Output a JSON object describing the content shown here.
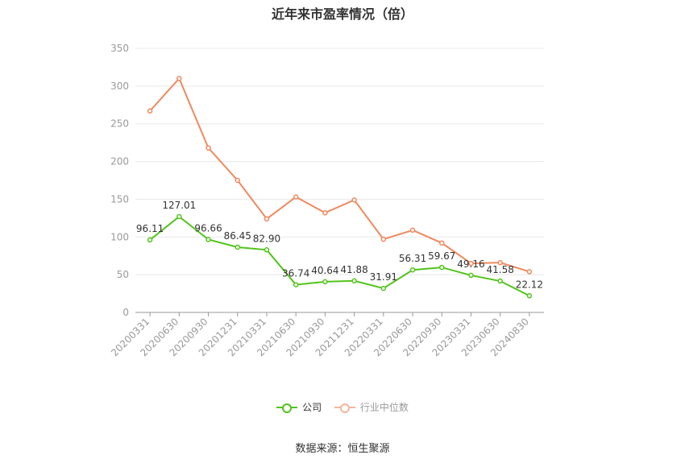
{
  "chart_data": {
    "type": "line",
    "title": "近年来市盈率情况（倍）",
    "categories": [
      "20200331",
      "20200630",
      "20200930",
      "20201231",
      "20210331",
      "20210630",
      "20210930",
      "20211231",
      "20220331",
      "20220630",
      "20220930",
      "20230331",
      "20230630",
      "20240830"
    ],
    "series": [
      {
        "name": "公司",
        "color": "#52c41a",
        "values": [
          96.11,
          127.01,
          96.66,
          86.45,
          82.9,
          36.74,
          40.64,
          41.88,
          31.91,
          56.31,
          59.67,
          49.16,
          41.58,
          22.12
        ],
        "labels": [
          "96.11",
          "127.01",
          "96.66",
          "86.45",
          "82.90",
          "36.74",
          "40.64",
          "41.88",
          "31.91",
          "56.31",
          "59.67",
          "49.16",
          "41.58",
          "22.12"
        ]
      },
      {
        "name": "行业中位数",
        "color": "#f0895f",
        "values": [
          267,
          310,
          218,
          175,
          124,
          153,
          132,
          149,
          97,
          109,
          92,
          65,
          66,
          54
        ]
      }
    ],
    "ylim": [
      0,
      350
    ],
    "yticks": [
      0,
      50,
      100,
      150,
      200,
      250,
      300,
      350
    ],
    "grid": true,
    "legend_position": "bottom"
  },
  "footer": {
    "source": "数据来源：恒生聚源"
  }
}
